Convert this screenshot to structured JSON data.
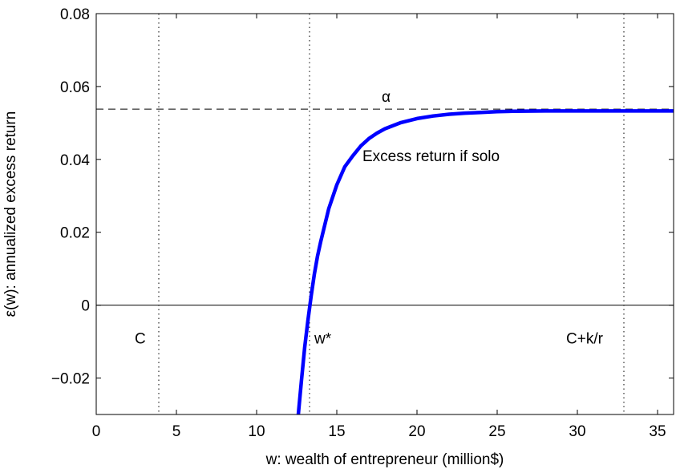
{
  "chart_data": {
    "type": "line",
    "xlabel": "w: wealth of entrepreneur (million$)",
    "ylabel": "ε(w): annualized excess return",
    "xlim": [
      0,
      36
    ],
    "ylim": [
      -0.03,
      0.08
    ],
    "x_ticks": [
      0,
      5,
      10,
      15,
      20,
      25,
      30,
      35
    ],
    "y_ticks": [
      -0.02,
      0,
      0.02,
      0.04,
      0.06,
      0.08
    ],
    "x_tick_labels": [
      "0",
      "5",
      "10",
      "15",
      "20",
      "25",
      "30",
      "35"
    ],
    "y_tick_labels": [
      "−0.02",
      "0",
      "0.02",
      "0.04",
      "0.06",
      "0.08"
    ],
    "grid": false,
    "series": [
      {
        "color": "#0000ff",
        "x": [
          12.6,
          12.8,
          13.0,
          13.2,
          13.4,
          13.6,
          13.8,
          14.0,
          14.5,
          15.0,
          15.5,
          16.0,
          16.5,
          17.0,
          17.5,
          18.0,
          19.0,
          20.0,
          21.0,
          22.0,
          23.0,
          24.0,
          25.0,
          26.0,
          28.0,
          30.0,
          32.0,
          34.0,
          36.0
        ],
        "y": [
          -0.03,
          -0.0205,
          -0.0115,
          -0.0042,
          0.0025,
          0.0085,
          0.0135,
          0.0175,
          0.0265,
          0.033,
          0.038,
          0.041,
          0.0437,
          0.0457,
          0.0472,
          0.0484,
          0.0501,
          0.0512,
          0.0519,
          0.0524,
          0.0527,
          0.0529,
          0.0531,
          0.0532,
          0.0533,
          0.0533,
          0.0533,
          0.0533,
          0.0533
        ]
      }
    ],
    "reference_lines": [
      {
        "orientation": "horizontal",
        "value": 0.0538,
        "style": "dashed",
        "label": "α"
      },
      {
        "orientation": "horizontal",
        "value": 0,
        "style": "solid"
      },
      {
        "orientation": "vertical",
        "value": 3.9,
        "style": "dotted",
        "label": "C"
      },
      {
        "orientation": "vertical",
        "value": 13.3,
        "style": "dotted",
        "label": "w*"
      },
      {
        "orientation": "vertical",
        "value": 32.9,
        "style": "dotted",
        "label": "C+k/r"
      }
    ],
    "annotations": [
      {
        "text": "Excess return if solo",
        "x": 16.6,
        "y": 0.0395
      },
      {
        "text": "α",
        "x": 17.8,
        "y": 0.0558
      },
      {
        "text": "C",
        "x": 2.4,
        "y": -0.0105
      },
      {
        "text": "w*",
        "x": 13.6,
        "y": -0.0105
      },
      {
        "text": "C+k/r",
        "x": 29.3,
        "y": -0.0105
      }
    ]
  }
}
